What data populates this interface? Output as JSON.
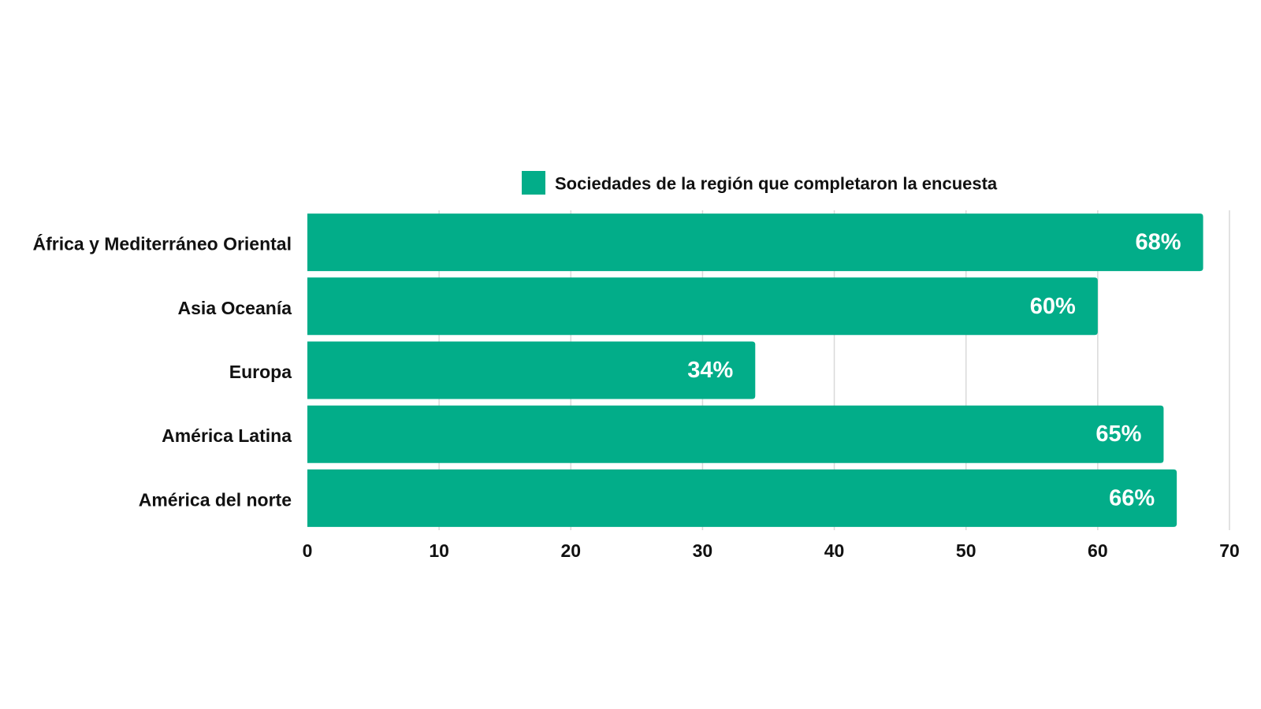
{
  "chart_data": {
    "type": "bar",
    "orientation": "horizontal",
    "categories": [
      "África y Mediterráneo Oriental",
      "Asia Oceanía",
      "Europa",
      "América Latina",
      "América del norte"
    ],
    "series": [
      {
        "name": "Sociedades de la región que completaron la encuesta",
        "values": [
          68,
          60,
          34,
          65,
          66
        ],
        "data_labels": [
          "68%",
          "60%",
          "34%",
          "65%",
          "66%"
        ],
        "color": "#02ad89"
      }
    ],
    "xlim": [
      0,
      70
    ],
    "x_ticks": [
      0,
      10,
      20,
      30,
      40,
      50,
      60,
      70
    ],
    "x_tick_labels": [
      "0",
      "10",
      "20",
      "30",
      "40",
      "50",
      "60",
      "70"
    ],
    "grid": true,
    "legend_position": "top-center",
    "title": "",
    "xlabel": "",
    "ylabel": ""
  }
}
